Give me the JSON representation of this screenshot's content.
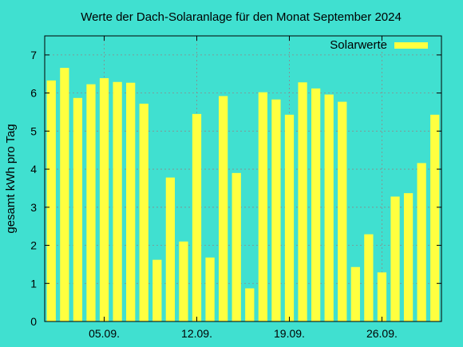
{
  "chart_data": {
    "type": "bar",
    "title": "Werte der Dach-Solaranlage für den Monat September 2024",
    "xlabel": "",
    "ylabel": "gesamt kWh pro Tag",
    "ylim": [
      0,
      7.5
    ],
    "yticks": [
      0,
      1,
      2,
      3,
      4,
      5,
      6,
      7
    ],
    "xticks": [
      {
        "day": 5,
        "label": "05.09."
      },
      {
        "day": 12,
        "label": "12.09."
      },
      {
        "day": 19,
        "label": "19.09."
      },
      {
        "day": 26,
        "label": "26.09."
      }
    ],
    "grid": true,
    "legend_position": "top-right",
    "bar_color": "#ffff40",
    "background_color": "#40e0d0",
    "series": [
      {
        "name": "Solarwerte",
        "days": [
          1,
          2,
          3,
          4,
          5,
          6,
          7,
          8,
          9,
          10,
          11,
          12,
          13,
          14,
          15,
          16,
          17,
          18,
          19,
          20,
          21,
          22,
          23,
          24,
          25,
          26,
          27,
          28,
          29,
          30
        ],
        "values": [
          6.33,
          6.66,
          5.87,
          6.23,
          6.39,
          6.29,
          6.27,
          5.72,
          1.62,
          3.78,
          2.1,
          5.45,
          1.68,
          5.92,
          3.9,
          0.87,
          6.02,
          5.83,
          5.43,
          6.28,
          6.12,
          5.96,
          5.77,
          1.43,
          2.29,
          1.29,
          3.28,
          3.37,
          4.16,
          5.43
        ]
      }
    ]
  }
}
